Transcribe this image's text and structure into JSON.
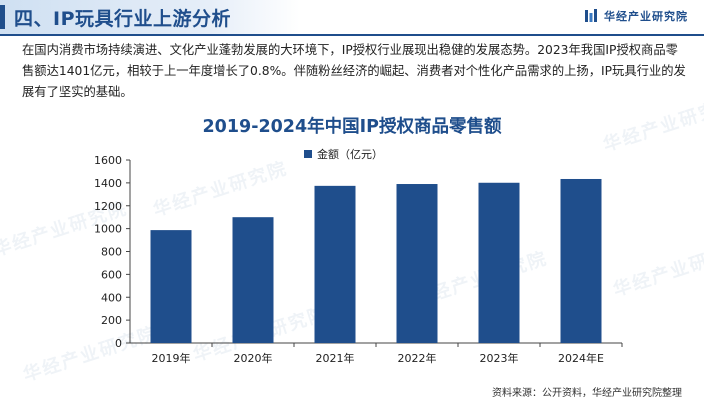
{
  "header": {
    "title": "四、IP玩具行业上游分析",
    "brand": "华经产业研究院"
  },
  "intro_text": "在国内消费市场持续演进、文化产业蓬勃发展的大环境下，IP授权行业展现出稳健的发展态势。2023年我国IP授权商品零售额达1401亿元，相较于上一年度增长了0.8%。伴随粉丝经济的崛起、消费者对个性化产品需求的上扬，IP玩具行业的发展有了坚实的基础。",
  "watermark": "华经产业研究院",
  "colors": {
    "accent": "#1f4e8c",
    "bar": "#1f4e8c"
  },
  "chart_data": {
    "type": "bar",
    "title": "2019-2024年中国IP授权商品零售额",
    "categories": [
      "2019年",
      "2020年",
      "2021年",
      "2022年",
      "2023年",
      "2024年E"
    ],
    "series": [
      {
        "name": "金额（亿元）",
        "values": [
          987,
          1100,
          1374,
          1390,
          1401,
          1434
        ]
      }
    ],
    "ylim": [
      0,
      1600
    ],
    "yticks": [
      0,
      200,
      400,
      600,
      800,
      1000,
      1200,
      1400,
      1600
    ],
    "grid": false,
    "legend": "top-center"
  },
  "source": "资料来源：公开资料，华经产业研究院整理"
}
